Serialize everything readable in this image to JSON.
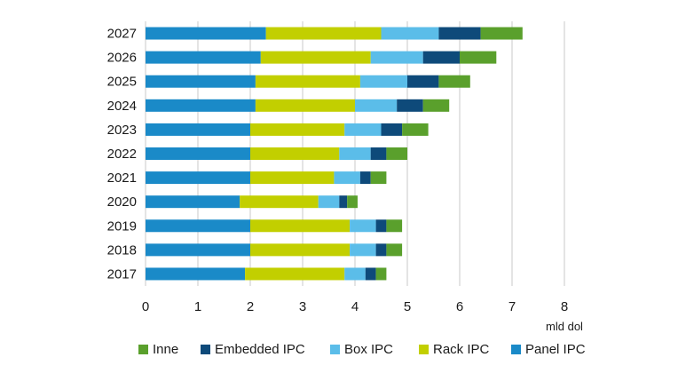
{
  "chart_data": {
    "type": "bar",
    "orientation": "horizontal",
    "stacked": true,
    "categories": [
      "2027",
      "2026",
      "2025",
      "2024",
      "2023",
      "2022",
      "2021",
      "2020",
      "2019",
      "2018",
      "2017"
    ],
    "series": [
      {
        "name": "Panel IPC",
        "color": "#1a8ac8",
        "values": [
          2.3,
          2.2,
          2.1,
          2.1,
          2.0,
          2.0,
          2.0,
          1.8,
          2.0,
          2.0,
          1.9
        ]
      },
      {
        "name": "Rack IPC",
        "color": "#c2cf00",
        "values": [
          2.2,
          2.1,
          2.0,
          1.9,
          1.8,
          1.7,
          1.6,
          1.5,
          1.9,
          1.9,
          1.9
        ]
      },
      {
        "name": "Box IPC",
        "color": "#5bbde9",
        "values": [
          1.1,
          1.0,
          0.9,
          0.8,
          0.7,
          0.6,
          0.5,
          0.4,
          0.5,
          0.5,
          0.4
        ]
      },
      {
        "name": "Embedded IPC",
        "color": "#0e4a7a",
        "values": [
          0.8,
          0.7,
          0.6,
          0.5,
          0.4,
          0.3,
          0.2,
          0.15,
          0.2,
          0.2,
          0.2
        ]
      },
      {
        "name": "Inne",
        "color": "#5aa02c",
        "values": [
          0.8,
          0.7,
          0.6,
          0.5,
          0.5,
          0.4,
          0.3,
          0.2,
          0.3,
          0.3,
          0.2
        ]
      }
    ],
    "legend_order": [
      "Inne",
      "Embedded IPC",
      "Box IPC",
      "Rack IPC",
      "Panel IPC"
    ],
    "legend_position": "bottom",
    "x_ticks": [
      0,
      1,
      2,
      3,
      4,
      5,
      6,
      7,
      8
    ],
    "xlim": [
      0,
      8
    ],
    "xlabel": "mld dol",
    "ylabel": "",
    "title": "",
    "grid": "vertical",
    "grid_color": "#c8c8c8"
  }
}
